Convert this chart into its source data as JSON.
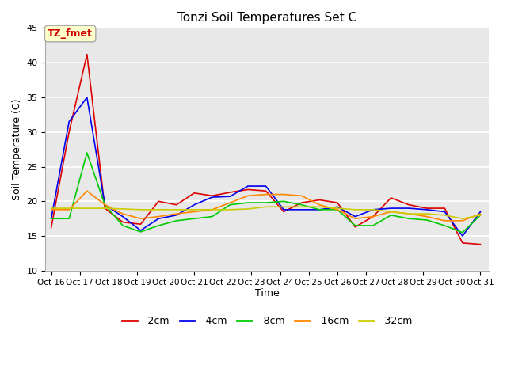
{
  "title": "Tonzi Soil Temperatures Set C",
  "xlabel": "Time",
  "ylabel": "Soil Temperature (C)",
  "ylim": [
    10,
    45
  ],
  "annotation_label": "TZ_fmet",
  "annotation_bg": "#ffffcc",
  "annotation_border": "#aaaaaa",
  "annotation_text_color": "#cc0000",
  "fig_bg": "#ffffff",
  "plot_bg": "#e8e8e8",
  "grid_color": "#ffffff",
  "xtick_labels": [
    "Oct 16",
    "Oct 17",
    "Oct 18",
    "Oct 19",
    "Oct 20",
    "Oct 21",
    "Oct 22",
    "Oct 23",
    "Oct 24",
    "Oct 25",
    "Oct 26",
    "Oct 27",
    "Oct 28",
    "Oct 29",
    "Oct 30",
    "Oct 31"
  ],
  "series_order": [
    "-2cm",
    "-4cm",
    "-8cm",
    "-16cm",
    "-32cm"
  ],
  "series": {
    "-2cm": {
      "color": "#dd0000",
      "values": [
        16.2,
        30.0,
        41.2,
        19.0,
        17.0,
        16.7,
        20.0,
        19.5,
        21.2,
        20.8,
        21.3,
        21.7,
        21.5,
        18.5,
        19.8,
        20.2,
        19.8,
        16.3,
        17.8,
        20.5,
        19.5,
        19.0,
        19.0,
        14.0,
        13.8
      ]
    },
    "-4cm": {
      "color": "#0000ee",
      "values": [
        17.5,
        31.5,
        35.0,
        19.5,
        17.8,
        15.8,
        17.5,
        18.0,
        19.5,
        20.6,
        20.7,
        22.2,
        22.2,
        18.8,
        18.8,
        18.8,
        19.2,
        17.8,
        18.8,
        19.0,
        19.0,
        18.8,
        18.5,
        15.0,
        18.5
      ]
    },
    "-8cm": {
      "color": "#00cc00",
      "values": [
        17.5,
        17.5,
        27.0,
        19.5,
        16.5,
        15.6,
        16.5,
        17.2,
        17.5,
        17.8,
        19.5,
        19.8,
        19.8,
        20.0,
        19.5,
        18.8,
        18.8,
        16.5,
        16.5,
        18.0,
        17.5,
        17.3,
        16.5,
        15.5,
        18.0
      ]
    },
    "-16cm": {
      "color": "#ff8800",
      "values": [
        18.8,
        18.8,
        21.5,
        19.5,
        18.2,
        17.5,
        17.8,
        18.2,
        18.5,
        18.8,
        19.8,
        20.8,
        21.0,
        21.0,
        20.8,
        19.5,
        18.8,
        17.5,
        17.8,
        18.5,
        18.2,
        17.8,
        17.2,
        17.2,
        18.2
      ]
    },
    "-32cm": {
      "color": "#cccc00",
      "values": [
        19.0,
        19.0,
        19.0,
        19.0,
        18.9,
        18.8,
        18.8,
        18.8,
        18.8,
        18.8,
        18.8,
        18.9,
        19.2,
        19.2,
        19.2,
        19.2,
        19.0,
        18.8,
        18.8,
        18.5,
        18.2,
        18.2,
        18.0,
        17.5,
        18.0
      ]
    }
  }
}
